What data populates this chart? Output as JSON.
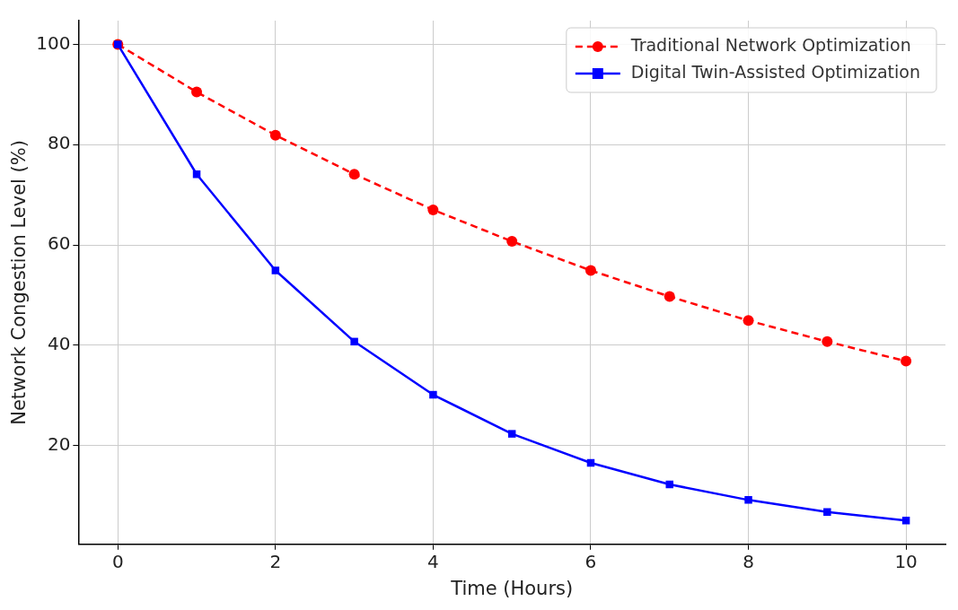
{
  "chart_data": {
    "type": "line",
    "xlabel": "Time (Hours)",
    "ylabel": "Network Congestion Level (%)",
    "x": [
      0,
      1,
      2,
      3,
      4,
      5,
      6,
      7,
      8,
      9,
      10
    ],
    "series": [
      {
        "name": "Traditional Network Optimization",
        "color": "#ff0000",
        "marker": "circle",
        "line_style": "dashed",
        "values": [
          100,
          90.5,
          81.9,
          74.1,
          67.0,
          60.7,
          54.9,
          49.7,
          44.9,
          40.7,
          36.8
        ]
      },
      {
        "name": "Digital Twin-Assisted Optimization",
        "color": "#0000ff",
        "marker": "square",
        "line_style": "solid",
        "values": [
          100,
          74.1,
          54.9,
          40.7,
          30.1,
          22.3,
          16.5,
          12.2,
          9.1,
          6.7,
          5.0
        ]
      }
    ],
    "xlim": [
      -0.5,
      10.5
    ],
    "xticks": [
      0,
      2,
      4,
      6,
      8,
      10
    ],
    "ylim": [
      0.25,
      104.75
    ],
    "yticks": [
      20,
      40,
      60,
      80,
      100
    ],
    "grid": true,
    "legend": "top right"
  }
}
